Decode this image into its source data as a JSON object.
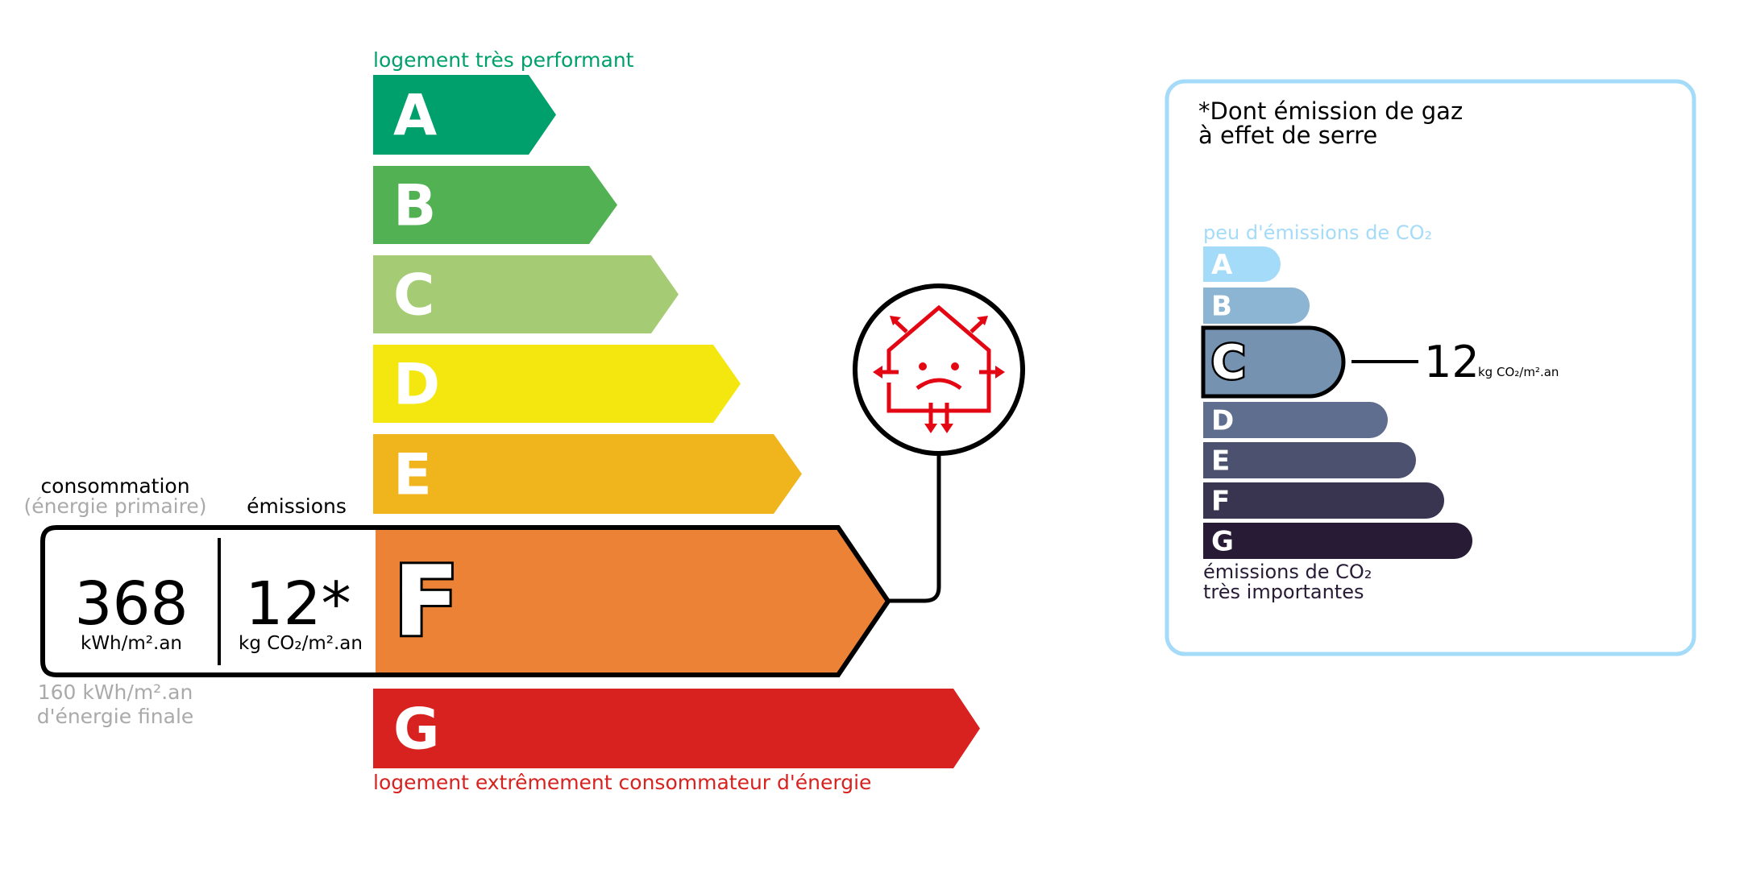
{
  "energy": {
    "top_label": "logement très performant",
    "bottom_label": "logement extrêmement consommateur d'énergie",
    "classes": [
      {
        "letter": "A",
        "color": "#00a06d"
      },
      {
        "letter": "B",
        "color": "#52b153"
      },
      {
        "letter": "C",
        "color": "#a5cc74"
      },
      {
        "letter": "D",
        "color": "#f4e70f"
      },
      {
        "letter": "E",
        "color": "#f0b41c"
      },
      {
        "letter": "F",
        "color": "#eb8235"
      },
      {
        "letter": "G",
        "color": "#d7221f"
      }
    ],
    "current_class": "F",
    "icon": "house-heat-loss-sad-icon"
  },
  "values": {
    "consumption_header": "consommation",
    "consumption_subheader": "(énergie primaire)",
    "emissions_header": "émissions",
    "consumption_value": "368",
    "consumption_unit": "kWh/m².an",
    "emissions_value": "12*",
    "emissions_unit": "kg CO₂/m².an",
    "final_energy_line1": "160 kWh/m².an",
    "final_energy_line2": "d'énergie finale"
  },
  "ges": {
    "title_line1": "*Dont émission de gaz",
    "title_line2": "à effet de serre",
    "top_label": "peu d'émissions de CO₂",
    "bottom_label_line1": "émissions de CO₂",
    "bottom_label_line2": "très importantes",
    "classes": [
      {
        "letter": "A",
        "color": "#a4dbf8"
      },
      {
        "letter": "B",
        "color": "#8cb4d3"
      },
      {
        "letter": "C",
        "color": "#7692b1"
      },
      {
        "letter": "D",
        "color": "#5f6e8e"
      },
      {
        "letter": "E",
        "color": "#4d5170"
      },
      {
        "letter": "F",
        "color": "#393551"
      },
      {
        "letter": "G",
        "color": "#281b35"
      }
    ],
    "current_class": "C",
    "value": "12",
    "unit": "kg CO₂/m².an",
    "border_color": "#a4dbf8"
  }
}
